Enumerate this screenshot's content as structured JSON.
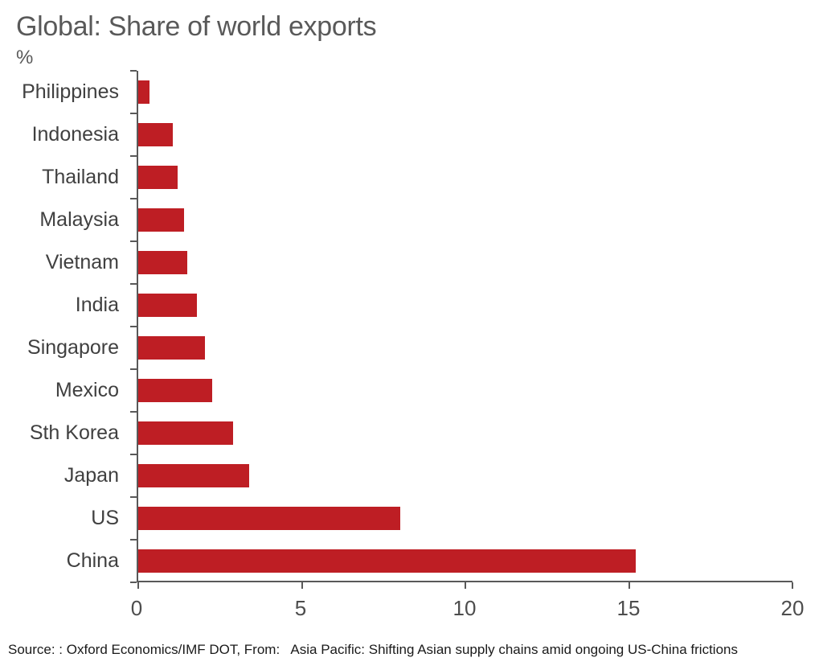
{
  "title": "Global: Share of world exports",
  "unit_label": "%",
  "source_line": "Source: : Oxford Economics/IMF DOT, From:   Asia Pacific: Shifting Asian supply chains amid ongoing US-China frictions",
  "colors": {
    "bar": "#BE1E24",
    "title_text": "#595959",
    "category_text": "#404040",
    "tick_text": "#4d4d4d",
    "axis": "#595959",
    "background": "#ffffff"
  },
  "chart_data": {
    "type": "bar",
    "orientation": "horizontal",
    "title": "Global: Share of world exports",
    "ylabel": "%",
    "xlabel": "",
    "categories": [
      "Philippines",
      "Indonesia",
      "Thailand",
      "Malaysia",
      "Vietnam",
      "India",
      "Singapore",
      "Mexico",
      "Sth Korea",
      "Japan",
      "US",
      "China"
    ],
    "values": [
      0.35,
      1.05,
      1.2,
      1.4,
      1.5,
      1.8,
      2.05,
      2.25,
      2.9,
      3.4,
      8.0,
      15.2
    ],
    "xlim": [
      0,
      20
    ],
    "xticks": [
      0,
      5,
      10,
      15,
      20
    ],
    "xtick_labels": [
      "0",
      "5",
      "10",
      "15",
      "20"
    ],
    "grid": false,
    "legend": null
  }
}
